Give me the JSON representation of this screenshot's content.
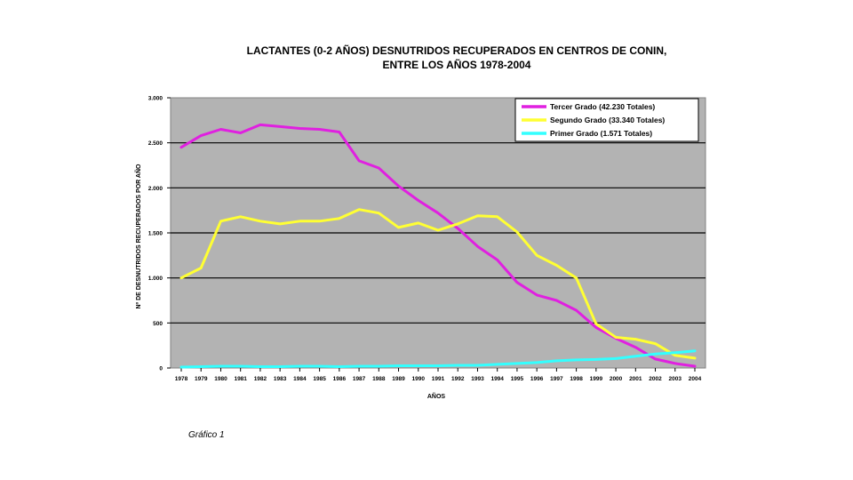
{
  "chart_data": {
    "type": "line",
    "title_line1": "LACTANTES (0-2 AÑOS) DESNUTRIDOS RECUPERADOS EN CENTROS DE CONIN,",
    "title_line2": "ENTRE LOS AÑOS 1978-2004",
    "xlabel": "AÑOS",
    "ylabel": "Nº DE DESNUTRIDOS RECUPERADOS POR AÑO",
    "x": [
      "1978",
      "1979",
      "1980",
      "1981",
      "1982",
      "1983",
      "1984",
      "1985",
      "1986",
      "1987",
      "1988",
      "1989",
      "1990",
      "1991",
      "1992",
      "1993",
      "1994",
      "1995",
      "1996",
      "1997",
      "1998",
      "1999",
      "2000",
      "2001",
      "2002",
      "2003",
      "2004"
    ],
    "y_ticks": [
      {
        "value": 0,
        "label": "0"
      },
      {
        "value": 500,
        "label": "500"
      },
      {
        "value": 1000,
        "label": "1.000"
      },
      {
        "value": 1500,
        "label": "1.500"
      },
      {
        "value": 2000,
        "label": "2.000"
      },
      {
        "value": 2500,
        "label": "2.500"
      },
      {
        "value": 3000,
        "label": "3.000"
      }
    ],
    "ylim": [
      0,
      3000
    ],
    "grid": true,
    "legend_position": "top-right",
    "series": [
      {
        "name": "Tercer Grado (42.230 Totales)",
        "color": "#e020e0",
        "values": [
          2450,
          2580,
          2650,
          2610,
          2700,
          2680,
          2660,
          2650,
          2620,
          2300,
          2220,
          2020,
          1860,
          1720,
          1550,
          1350,
          1200,
          950,
          810,
          750,
          640,
          450,
          330,
          230,
          100,
          50,
          20
        ]
      },
      {
        "name": "Segundo Grado (33.340 Totales)",
        "color": "#ffff33",
        "values": [
          1000,
          1110,
          1630,
          1680,
          1630,
          1600,
          1630,
          1630,
          1660,
          1760,
          1720,
          1560,
          1610,
          1530,
          1600,
          1690,
          1680,
          1510,
          1250,
          1140,
          1000,
          490,
          340,
          320,
          270,
          140,
          110
        ]
      },
      {
        "name": "Primer Grado (1.571 Totales)",
        "color": "#33ffff",
        "values": [
          10,
          15,
          20,
          20,
          15,
          15,
          20,
          20,
          15,
          20,
          20,
          25,
          25,
          25,
          30,
          30,
          40,
          50,
          60,
          80,
          90,
          95,
          105,
          130,
          155,
          170,
          190
        ]
      }
    ]
  },
  "caption": "Gráfico 1"
}
